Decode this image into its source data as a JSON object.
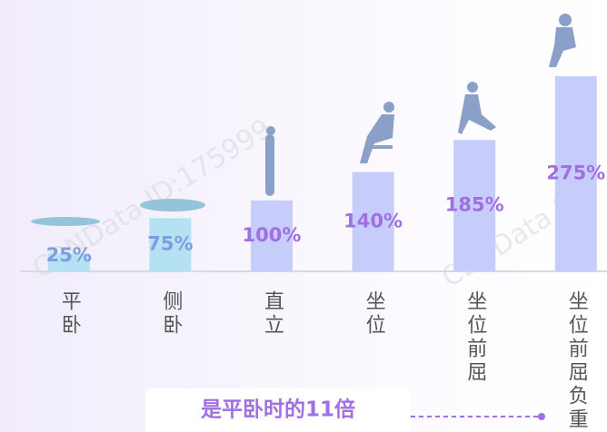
{
  "chart_data": {
    "type": "bar",
    "categories": [
      "平卧",
      "侧卧",
      "直立",
      "坐位",
      "坐位前屈",
      "坐位前屈负重"
    ],
    "values": [
      25,
      75,
      100,
      140,
      185,
      275
    ],
    "value_labels": [
      "25%",
      "75%",
      "100%",
      "140%",
      "185%",
      "275%"
    ],
    "colors": [
      "#b5e2f2",
      "#b5e2f2",
      "#c6cdfb",
      "#c6cdfb",
      "#c6cdfb",
      "#c6cdfb"
    ],
    "label_colors": [
      "#7f9ce0",
      "#7f9ce0",
      "#a06fe2",
      "#a06fe2",
      "#a06fe2",
      "#a06fe2"
    ],
    "ylim": [
      0,
      275
    ],
    "annotation": "是平卧时的11倍",
    "watermarks": [
      "CBNData ID:175999",
      "CBNData ID"
    ]
  }
}
